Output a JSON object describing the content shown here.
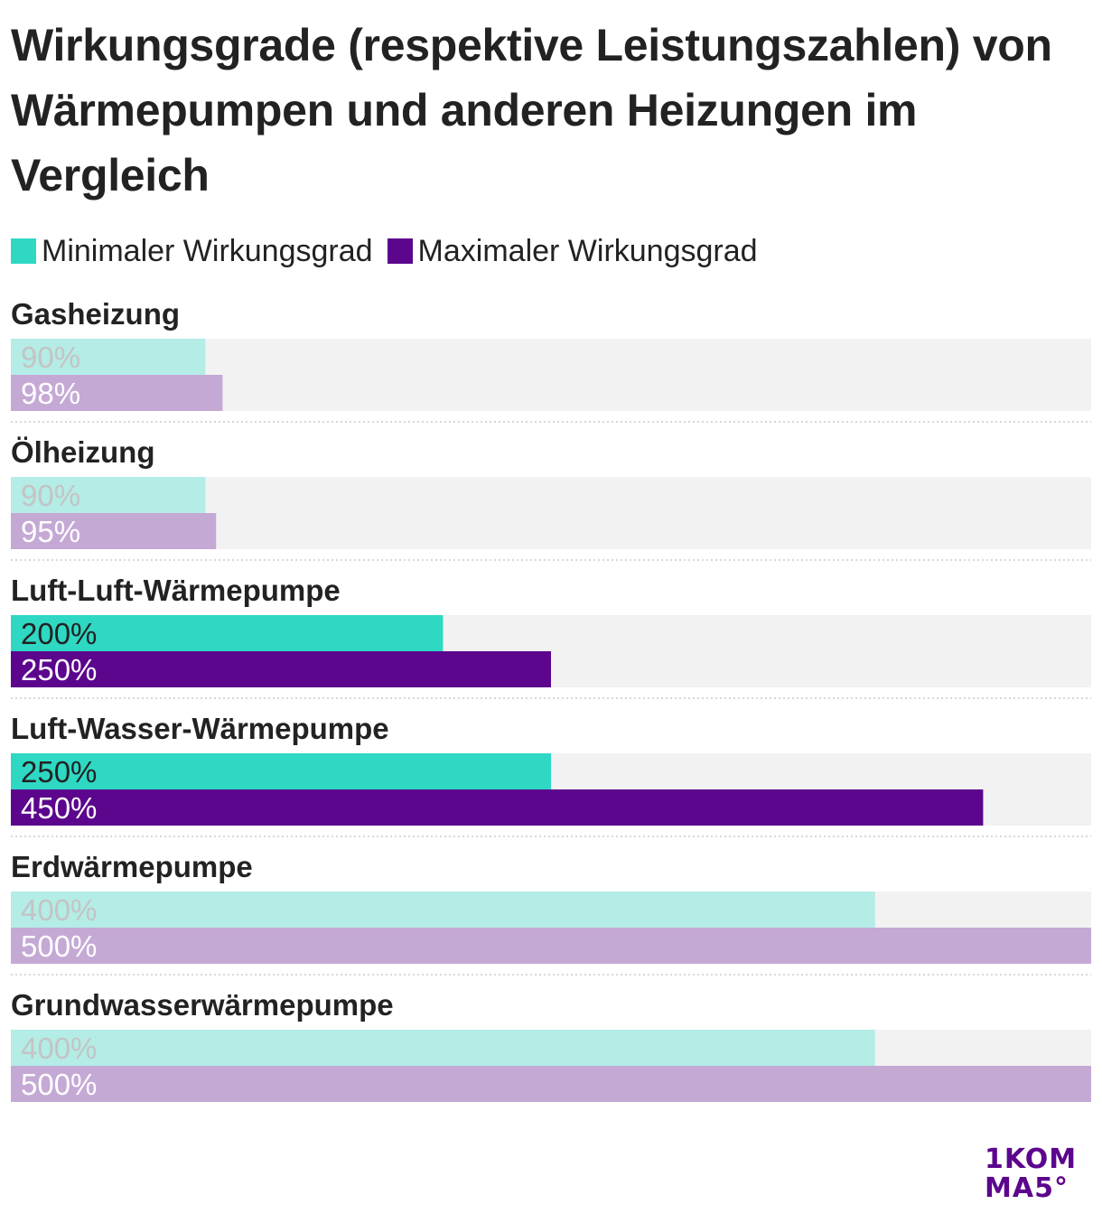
{
  "title": "Wirkungsgrade (respektive Leistungszahlen) von Wärmepumpen und anderen Heizungen im Vergleich",
  "legend": {
    "min_label": "Minimaler Wirkungsgrad",
    "max_label": "Maximaler Wirkungsgrad"
  },
  "colors": {
    "min": "#2ed8c3",
    "max": "#5c058d",
    "min_muted": "#b4ece6",
    "max_muted": "#c5a9d5",
    "track": "#f2f2f2",
    "logo": "#5c058d"
  },
  "logo": {
    "line1": "1KOM",
    "line2": "MA5°"
  },
  "chart_data": {
    "type": "bar",
    "orientation": "horizontal",
    "xlim": [
      0,
      500
    ],
    "unit": "%",
    "categories": [
      "Gasheizung",
      "Ölheizung",
      "Luft-Luft-Wärmepumpe",
      "Luft-Wasser-Wärmepumpe",
      "Erdwärmepumpe",
      "Grundwasserwärmepumpe"
    ],
    "series": [
      {
        "name": "Minimaler Wirkungsgrad",
        "values": [
          90,
          90,
          200,
          250,
          400,
          400
        ],
        "labels": [
          "90%",
          "90%",
          "200%",
          "250%",
          "400%",
          "400%"
        ]
      },
      {
        "name": "Maximaler Wirkungsgrad",
        "values": [
          98,
          95,
          250,
          450,
          500,
          500
        ],
        "labels": [
          "98%",
          "95%",
          "250%",
          "450%",
          "500%",
          "500%"
        ]
      }
    ],
    "highlighted": [
      false,
      false,
      true,
      true,
      false,
      false
    ]
  }
}
